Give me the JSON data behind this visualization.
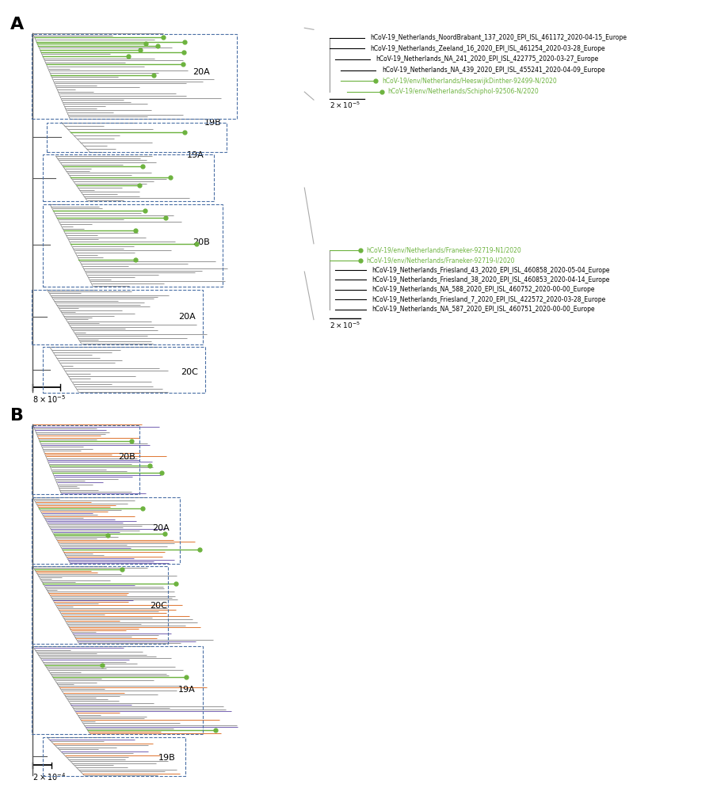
{
  "fig_width": 9.0,
  "fig_height": 10.09,
  "background_color": "#ffffff",
  "colors": {
    "green": "#6db33f",
    "orange": "#e07b39",
    "purple": "#7b68b5",
    "gray_dark": "#555555",
    "gray_mid": "#888888",
    "gray_light": "#bbbbbb",
    "box_border": "#4a6fa5",
    "tree_gray": "#999999"
  },
  "panel_A": {
    "inset1": {
      "lines_black": [
        "hCoV-19_Netherlands_NoordBrabant_137_2020_EPI_ISL_461172_2020-04-15_Europe",
        "hCoV-19_Netherlands_Zeeland_16_2020_EPI_ISL_461254_2020-03-28_Europe",
        "hCoV-19_Netherlands_NA_241_2020_EPI_ISL_422775_2020-03-27_Europe",
        "hCoV-19_Netherlands_NA_439_2020_EPI_ISL_455241_2020-04-09_Europe"
      ],
      "lines_green": [
        "hCoV-19/env/Netherlands/HeeswijkDinther-92499-N/2020",
        "hCoV-19/env/Netherlands/Schiphol-92506-N/2020"
      ],
      "scalebar_label": "2 × 10⁻⁵"
    },
    "inset2": {
      "lines_green": [
        "hCoV-19/env/Netherlands/Franeker-92719-N1/2020",
        "hCoV-19/env/Netherlands/Franeker-92719-I/2020"
      ],
      "lines_black": [
        "hCoV-19_Netherlands_Friesland_43_2020_EPI_ISL_460858_2020-05-04_Europe",
        "hCoV-19_Netherlands_Friesland_38_2020_EPI_ISL_460853_2020-04-14_Europe",
        "hCoV-19_Netherlands_NA_588_2020_EPI_ISL_460752_2020-00-00_Europe",
        "hCoV-19_Netherlands_Friesland_7_2020_EPI_ISL_422572_2020-03-28_Europe",
        "hCoV-19_Netherlands_NA_587_2020_EPI_ISL_460751_2020-00-00_Europe"
      ],
      "scalebar_label": "2 × 10⁻⁵"
    }
  }
}
